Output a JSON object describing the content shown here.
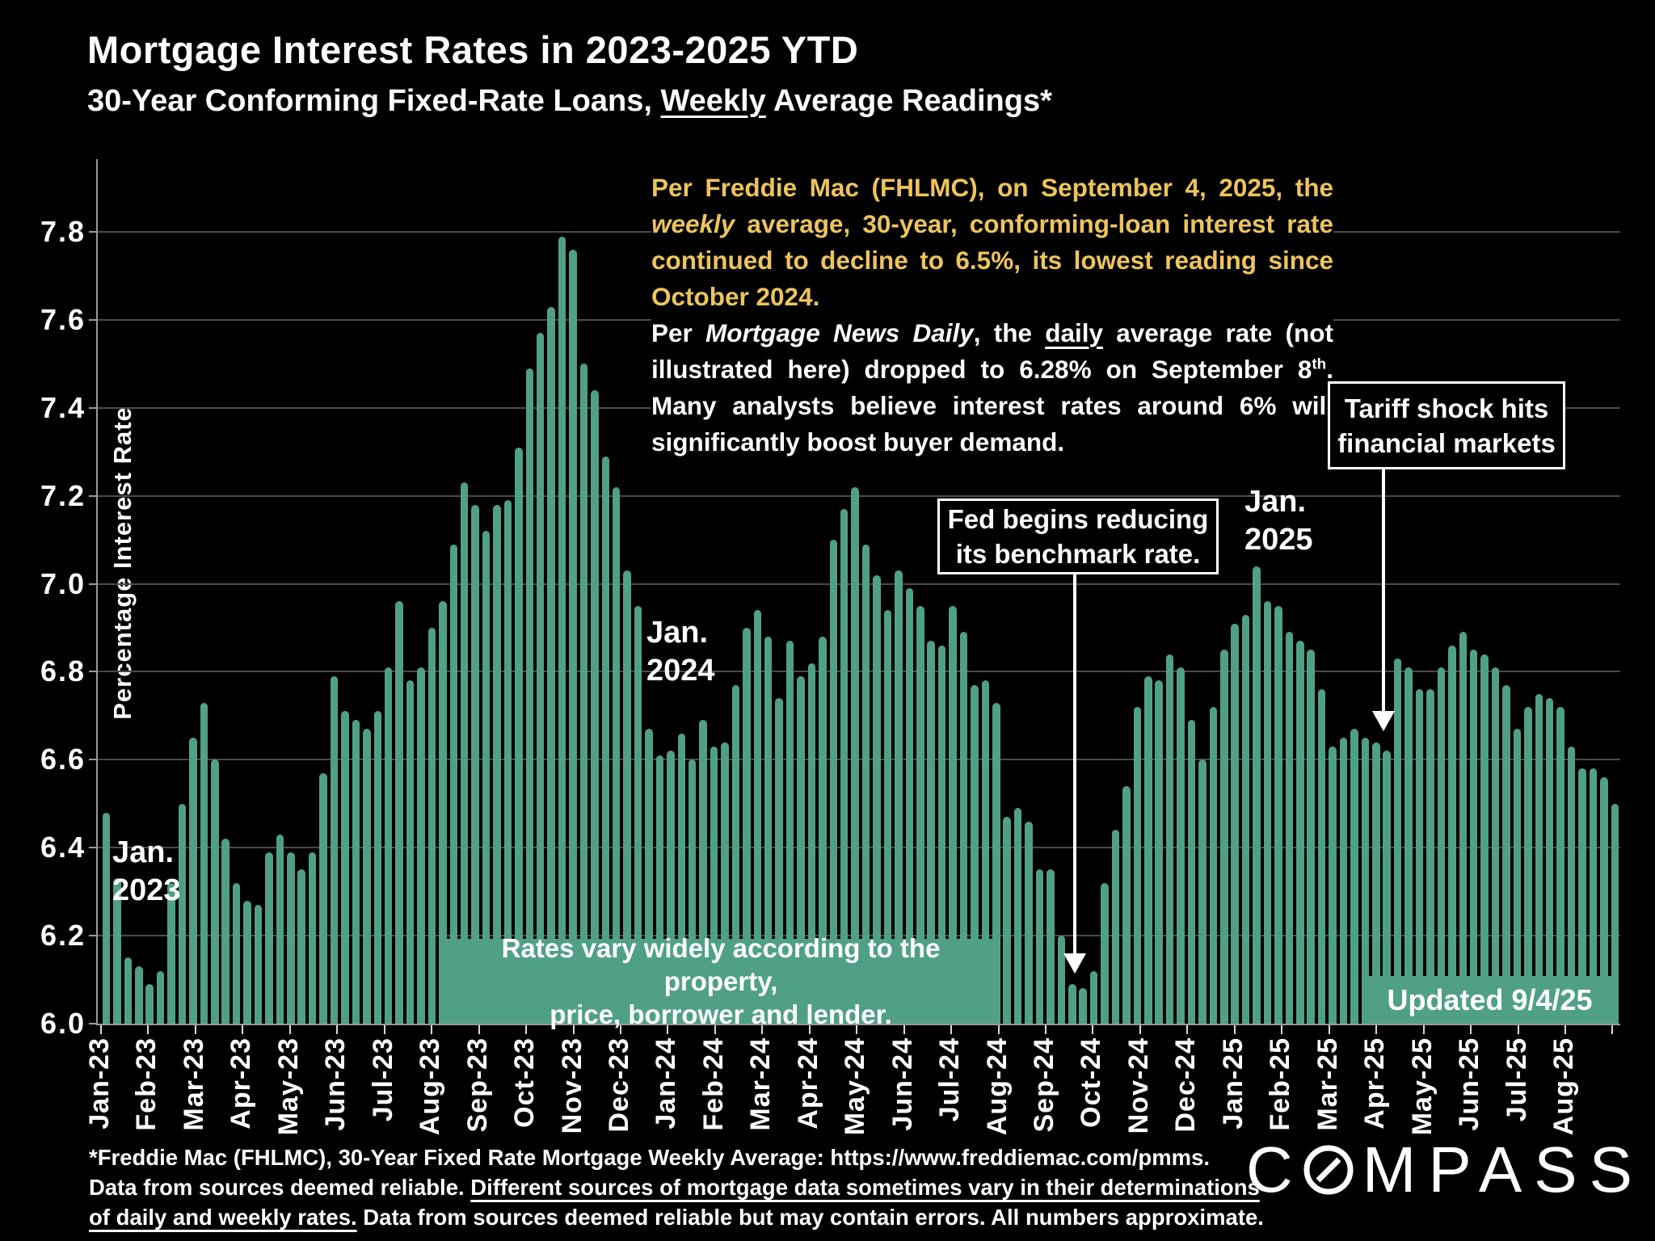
{
  "header": {
    "title": "Mortgage Interest Rates in 2023-2025 YTD",
    "subtitle_rich": [
      {
        "t": "30-Year Conforming Fixed-Rate Loans, "
      },
      {
        "t": "Weekly",
        "u": true
      },
      {
        "t": " Average Readings*"
      }
    ]
  },
  "chart_data": {
    "type": "bar",
    "title": "Mortgage Interest Rates in 2023-2025 YTD",
    "subtitle": "30-Year Conforming Fixed-Rate Loans, Weekly Average Readings*",
    "xlabel": "",
    "ylabel": "Percentage Interest Rate",
    "ylim": [
      6.0,
      7.8
    ],
    "grid": true,
    "legend_position": "none",
    "bar_color": "#50A087",
    "y_ticks": [
      "6.0",
      "6.2",
      "6.4",
      "6.6",
      "6.8",
      "7.0",
      "7.2",
      "7.4",
      "7.6",
      "7.8"
    ],
    "x_tick_labels": [
      "Jan-23",
      "Feb-23",
      "Mar-23",
      "Apr-23",
      "May-23",
      "Jun-23",
      "Jul-23",
      "Aug-23",
      "Sep-23",
      "Oct-23",
      "Nov-23",
      "Dec-23",
      "Jan-24",
      "Feb-24",
      "Mar-24",
      "Apr-24",
      "May-24",
      "Jun-24",
      "Jul-24",
      "Aug-24",
      "Sep-24",
      "Oct-24",
      "Nov-24",
      "Dec-24",
      "Jan-25",
      "Feb-25",
      "Mar-25",
      "Apr-25",
      "May-25",
      "Jun-25",
      "Jul-25",
      "Aug-25"
    ],
    "series": [
      {
        "name": "30-Year Conforming Fixed-Rate Loan, Weekly Average (%)",
        "values": [
          6.48,
          6.33,
          6.15,
          6.13,
          6.09,
          6.12,
          6.32,
          6.5,
          6.65,
          6.73,
          6.6,
          6.42,
          6.32,
          6.28,
          6.27,
          6.39,
          6.43,
          6.39,
          6.35,
          6.39,
          6.57,
          6.79,
          6.71,
          6.69,
          6.67,
          6.71,
          6.81,
          6.96,
          6.78,
          6.81,
          6.9,
          6.96,
          7.09,
          7.23,
          7.18,
          7.12,
          7.18,
          7.19,
          7.31,
          7.49,
          7.57,
          7.63,
          7.79,
          7.76,
          7.5,
          7.44,
          7.29,
          7.22,
          7.03,
          6.95,
          6.67,
          6.61,
          6.62,
          6.66,
          6.6,
          6.69,
          6.63,
          6.64,
          6.77,
          6.9,
          6.94,
          6.88,
          6.74,
          6.87,
          6.79,
          6.82,
          6.88,
          7.1,
          7.17,
          7.22,
          7.09,
          7.02,
          6.94,
          7.03,
          6.99,
          6.95,
          6.87,
          6.86,
          6.95,
          6.89,
          6.77,
          6.78,
          6.73,
          6.47,
          6.49,
          6.46,
          6.35,
          6.35,
          6.2,
          6.09,
          6.08,
          6.12,
          6.32,
          6.44,
          6.54,
          6.72,
          6.79,
          6.78,
          6.84,
          6.81,
          6.69,
          6.6,
          6.72,
          6.85,
          6.91,
          6.93,
          7.04,
          6.96,
          6.95,
          6.89,
          6.87,
          6.85,
          6.76,
          6.63,
          6.65,
          6.67,
          6.65,
          6.64,
          6.62,
          6.83,
          6.81,
          6.76,
          6.76,
          6.81,
          6.86,
          6.89,
          6.85,
          6.84,
          6.81,
          6.77,
          6.67,
          6.72,
          6.75,
          6.74,
          6.72,
          6.63,
          6.58,
          6.58,
          6.56,
          6.5
        ]
      }
    ]
  },
  "annotations": {
    "freddie_note_rich": [
      {
        "t": "Per Freddie Mac (FHLMC), on September 4, 2025, the "
      },
      {
        "t": "weekly",
        "i": true
      },
      {
        "t": " average, 30-year, conforming-loan interest rate continued to decline to 6.5%, its lowest reading since October 2024."
      }
    ],
    "mnd_note_rich": [
      {
        "t": "Per "
      },
      {
        "t": "Mortgage News Daily",
        "i": true
      },
      {
        "t": ", the "
      },
      {
        "t": "daily",
        "u": true
      },
      {
        "t": " average rate (not illustrated here) dropped to 6.28% on September 8"
      },
      {
        "t": "th",
        "sup": true
      },
      {
        "t": ". Many analysts believe interest rates around 6% will significantly boost buyer demand."
      }
    ],
    "jan_2023": {
      "line1": "Jan.",
      "line2": "2023"
    },
    "jan_2024": {
      "line1": "Jan.",
      "line2": "2024"
    },
    "jan_2025": {
      "line1": "Jan.",
      "line2": "2025"
    },
    "fed_box": {
      "line1": "Fed begins reducing",
      "line2": "its benchmark rate."
    },
    "tariff_box": {
      "line1": "Tariff shock hits",
      "line2": "financial markets"
    },
    "banner": {
      "line1": "Rates vary widely according to the property,",
      "line2": "price, borrower and lender."
    },
    "updated_banner": "Updated 9/4/25"
  },
  "footer": {
    "footnote_rich": [
      {
        "t": "*Freddie Mac (FHLMC), 30-Year Fixed Rate Mortgage Weekly Average:  https://www.freddiemac.com/pmms."
      },
      {
        "br": true
      },
      {
        "t": "Data from sources deemed reliable. "
      },
      {
        "t": "Different sources of mortgage data sometimes vary in their determinations",
        "u": true
      },
      {
        "br": true
      },
      {
        "t": "of daily and weekly rates.",
        "u": true
      },
      {
        "t": " Data from sources deemed reliable but may contain errors. All numbers approximate."
      }
    ],
    "logo": "COMPASS"
  },
  "colors": {
    "bar_teal": "#50A087",
    "banner_teal": "#50A087",
    "accent_yellow": "#EDC45C",
    "gridline_gray": "#4a4a4a",
    "background": "#000000"
  }
}
